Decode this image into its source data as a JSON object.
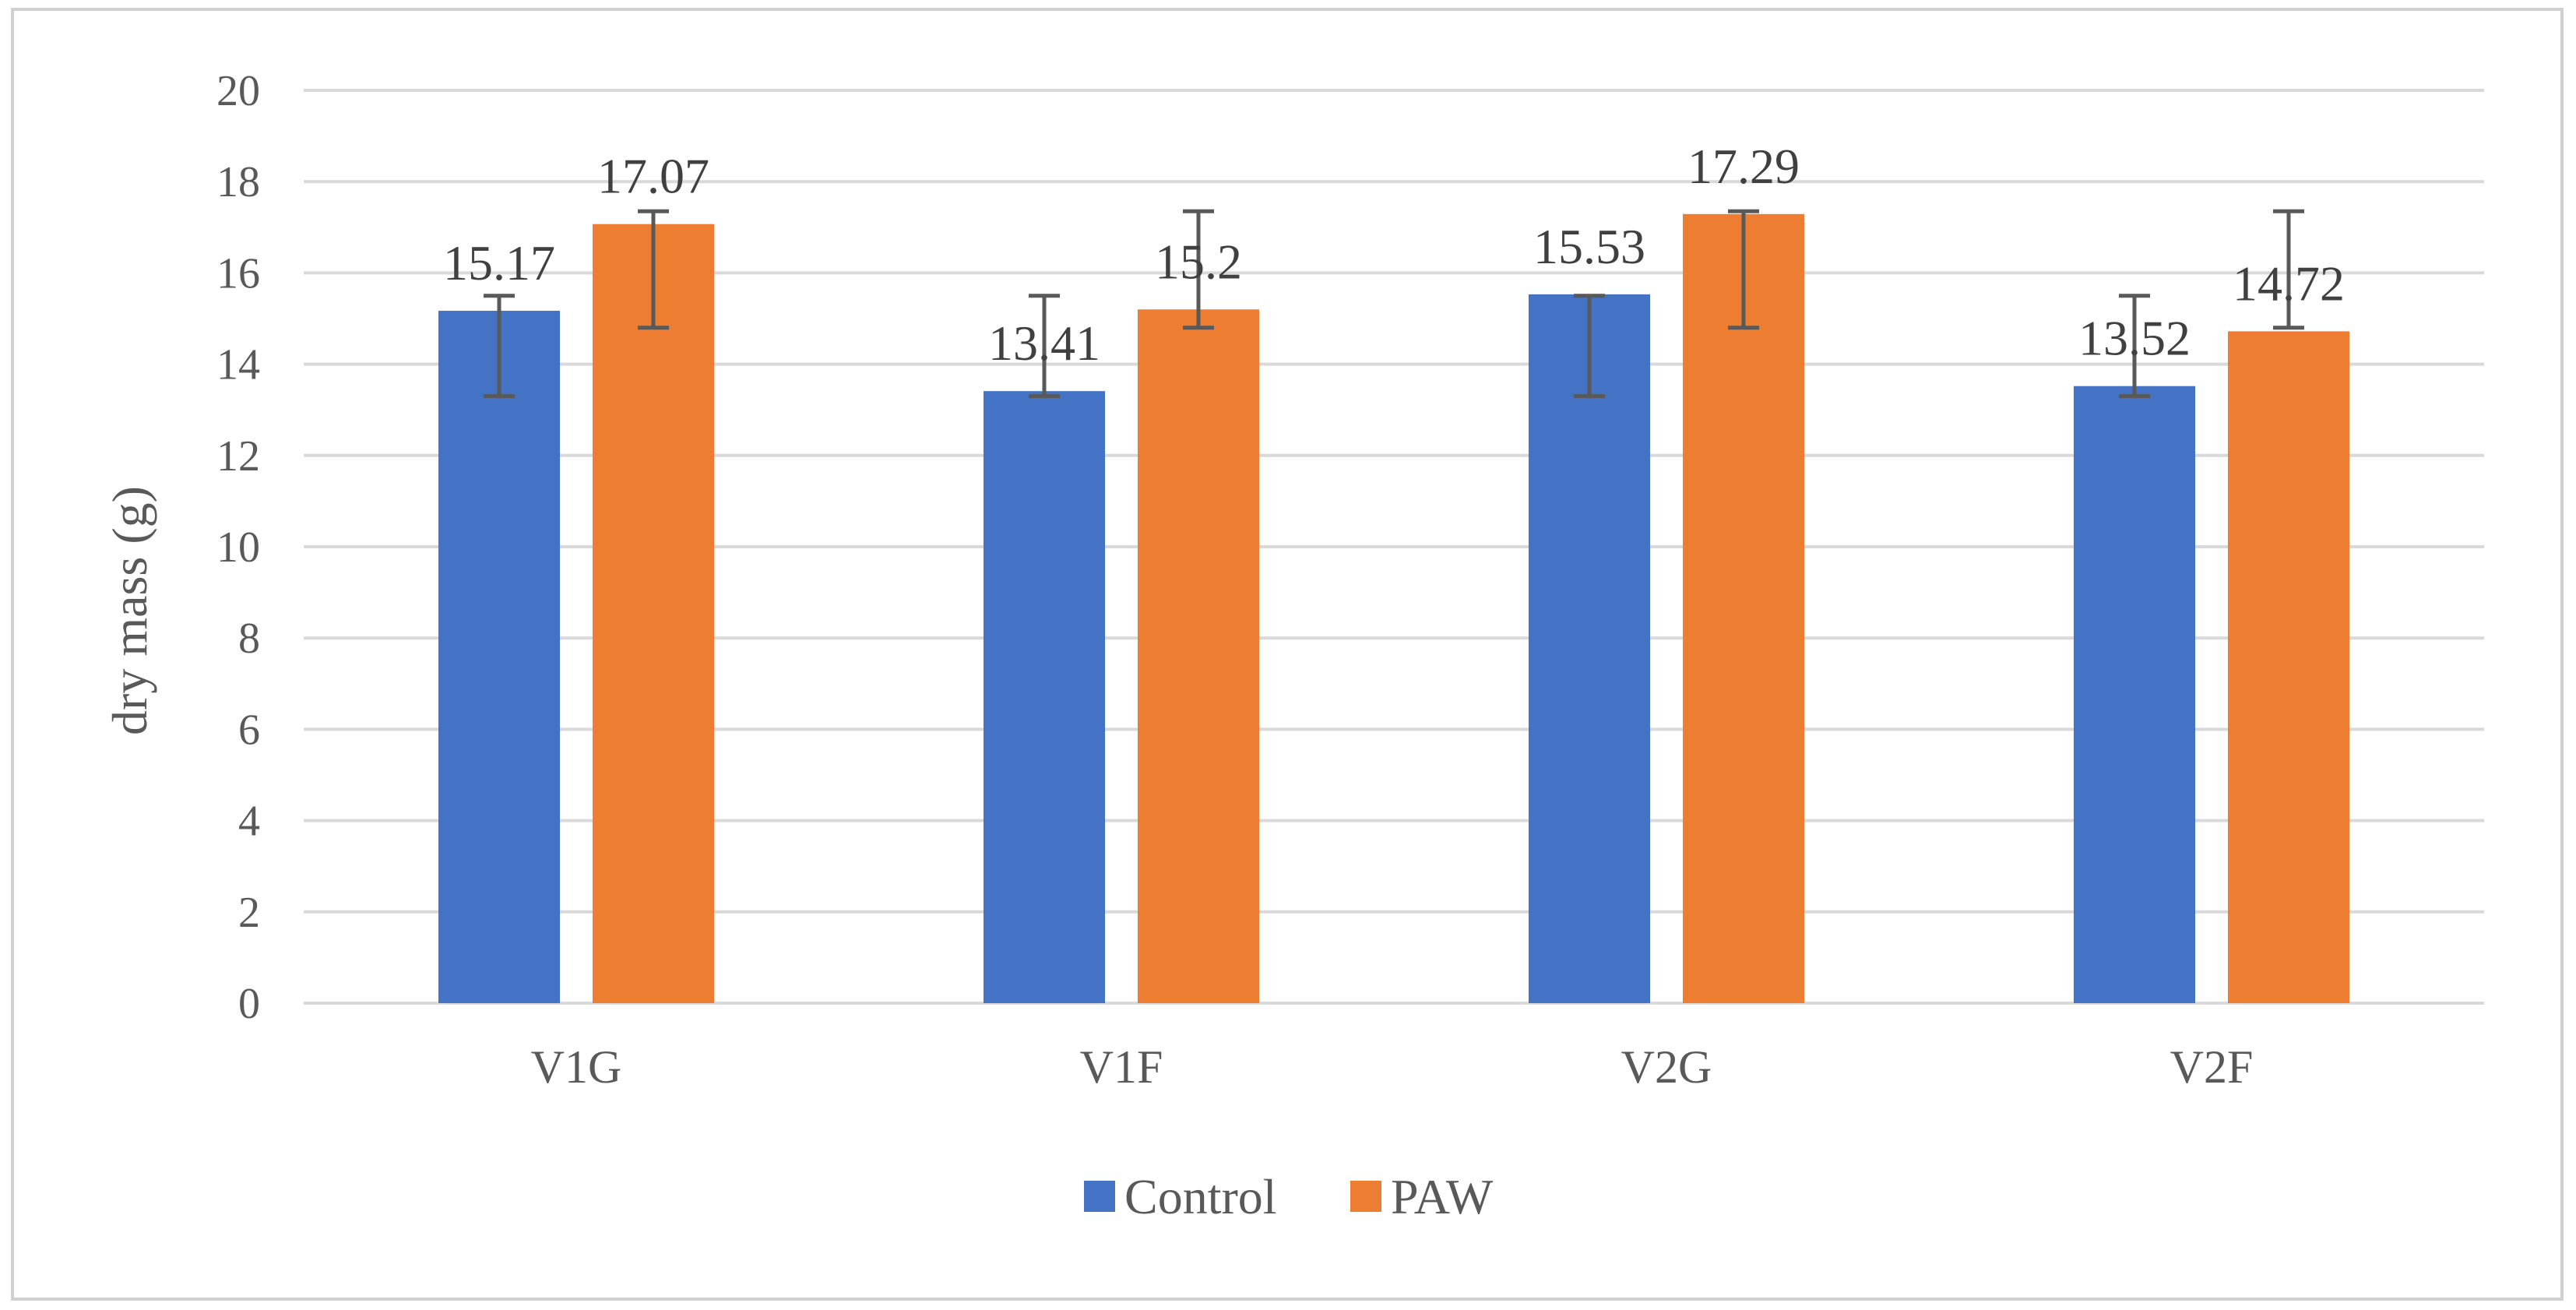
{
  "chart_data": {
    "type": "bar",
    "title": "",
    "xlabel": "",
    "ylabel": "dry mass (g)",
    "ylim": [
      0,
      20
    ],
    "yticks": [
      0,
      2,
      4,
      6,
      8,
      10,
      12,
      14,
      16,
      18,
      20
    ],
    "grid": true,
    "legend_position": "bottom",
    "categories": [
      "V1G",
      "V1F",
      "V2G",
      "V2F"
    ],
    "series": [
      {
        "name": "Control",
        "color": "#4472C4",
        "values": [
          15.17,
          13.41,
          15.53,
          13.52
        ],
        "labels": [
          "15.17",
          "13.41",
          "15.53",
          "13.52"
        ],
        "error_low": [
          13.3,
          13.3,
          13.3,
          13.3
        ],
        "error_high": [
          15.5,
          15.5,
          15.5,
          15.5
        ]
      },
      {
        "name": "PAW",
        "color": "#ED7D31",
        "values": [
          17.07,
          15.2,
          17.29,
          14.72
        ],
        "labels": [
          "17.07",
          "15.2",
          "17.29",
          "14.72"
        ],
        "error_low": [
          14.8,
          14.8,
          14.8,
          14.8
        ],
        "error_high": [
          17.35,
          17.35,
          17.35,
          17.35
        ]
      }
    ],
    "gridline_color": "#d9d9d9",
    "errorbar_color": "#595959"
  }
}
